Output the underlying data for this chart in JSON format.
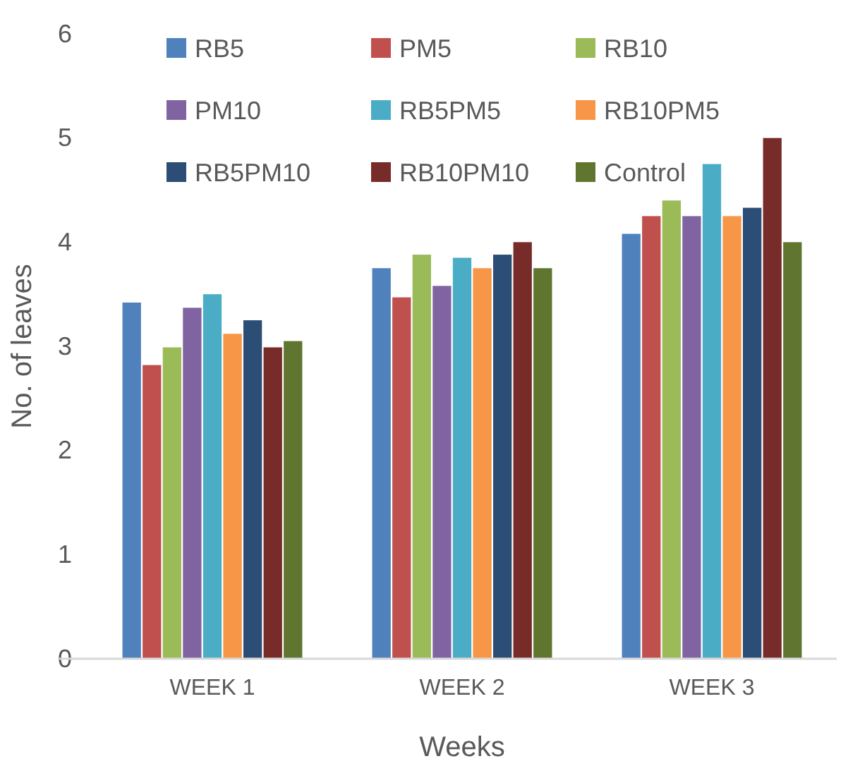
{
  "chart_data": {
    "type": "bar",
    "xlabel": "Weeks",
    "ylabel": "No. of leaves",
    "categories": [
      "WEEK 1",
      "WEEK 2",
      "WEEK 3"
    ],
    "series": [
      {
        "name": "RB5",
        "color": "#4f81bd",
        "values": [
          3.42,
          3.75,
          4.08
        ]
      },
      {
        "name": "PM5",
        "color": "#c0504d",
        "values": [
          2.82,
          3.47,
          4.25
        ]
      },
      {
        "name": "RB10",
        "color": "#9bbb59",
        "values": [
          2.99,
          3.88,
          4.4
        ]
      },
      {
        "name": "PM10",
        "color": "#8064a2",
        "values": [
          3.37,
          3.58,
          4.25
        ]
      },
      {
        "name": "RB5PM5",
        "color": "#4bacc6",
        "values": [
          3.5,
          3.85,
          4.75
        ]
      },
      {
        "name": "RB10PM5",
        "color": "#f79646",
        "values": [
          3.12,
          3.75,
          4.25
        ]
      },
      {
        "name": "RB5PM10",
        "color": "#2c4d75",
        "values": [
          3.25,
          3.88,
          4.33
        ]
      },
      {
        "name": "RB10PM10",
        "color": "#772c2a",
        "values": [
          2.99,
          4.0,
          5.0
        ]
      },
      {
        "name": "Control",
        "color": "#5f7530",
        "values": [
          3.05,
          3.75,
          4.0
        ]
      }
    ],
    "ylim": [
      0,
      6
    ],
    "yticks": [
      0,
      1,
      2,
      3,
      4,
      5,
      6
    ],
    "grid": false,
    "legend": "top"
  }
}
